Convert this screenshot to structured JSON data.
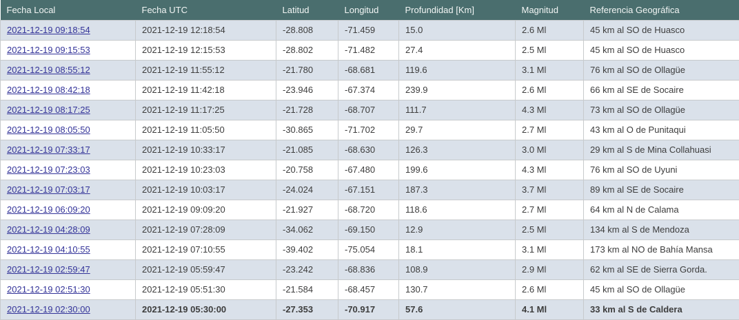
{
  "table": {
    "headers": [
      "Fecha Local",
      "Fecha UTC",
      "Latitud",
      "Longitud",
      "Profundidad [Km]",
      "Magnitud",
      "Referencia Geográfica"
    ],
    "rows": [
      {
        "fecha_local": "2021-12-19 09:18:54",
        "fecha_utc": "2021-12-19 12:18:54",
        "latitud": "-28.808",
        "longitud": "-71.459",
        "profundidad": "15.0",
        "magnitud": "2.6 Ml",
        "referencia": "45 km al SO de Huasco",
        "highlighted": false
      },
      {
        "fecha_local": "2021-12-19 09:15:53",
        "fecha_utc": "2021-12-19 12:15:53",
        "latitud": "-28.802",
        "longitud": "-71.482",
        "profundidad": "27.4",
        "magnitud": "2.5 Ml",
        "referencia": "45 km al SO de Huasco",
        "highlighted": false
      },
      {
        "fecha_local": "2021-12-19 08:55:12",
        "fecha_utc": "2021-12-19 11:55:12",
        "latitud": "-21.780",
        "longitud": "-68.681",
        "profundidad": "119.6",
        "magnitud": "3.1 Ml",
        "referencia": "76 km al SO de Ollagüe",
        "highlighted": false
      },
      {
        "fecha_local": "2021-12-19 08:42:18",
        "fecha_utc": "2021-12-19 11:42:18",
        "latitud": "-23.946",
        "longitud": "-67.374",
        "profundidad": "239.9",
        "magnitud": "2.6 Ml",
        "referencia": "66 km al SE de Socaire",
        "highlighted": false
      },
      {
        "fecha_local": "2021-12-19 08:17:25",
        "fecha_utc": "2021-12-19 11:17:25",
        "latitud": "-21.728",
        "longitud": "-68.707",
        "profundidad": "111.7",
        "magnitud": "4.3 Ml",
        "referencia": "73 km al SO de Ollagüe",
        "highlighted": false
      },
      {
        "fecha_local": "2021-12-19 08:05:50",
        "fecha_utc": "2021-12-19 11:05:50",
        "latitud": "-30.865",
        "longitud": "-71.702",
        "profundidad": "29.7",
        "magnitud": "2.7 Ml",
        "referencia": "43 km al O de Punitaqui",
        "highlighted": false
      },
      {
        "fecha_local": "2021-12-19 07:33:17",
        "fecha_utc": "2021-12-19 10:33:17",
        "latitud": "-21.085",
        "longitud": "-68.630",
        "profundidad": "126.3",
        "magnitud": "3.0 Ml",
        "referencia": "29 km al S de Mina Collahuasi",
        "highlighted": false
      },
      {
        "fecha_local": "2021-12-19 07:23:03",
        "fecha_utc": "2021-12-19 10:23:03",
        "latitud": "-20.758",
        "longitud": "-67.480",
        "profundidad": "199.6",
        "magnitud": "4.3 Ml",
        "referencia": "76 km al SO de Uyuni",
        "highlighted": false
      },
      {
        "fecha_local": "2021-12-19 07:03:17",
        "fecha_utc": "2021-12-19 10:03:17",
        "latitud": "-24.024",
        "longitud": "-67.151",
        "profundidad": "187.3",
        "magnitud": "3.7 Ml",
        "referencia": "89 km al SE de Socaire",
        "highlighted": false
      },
      {
        "fecha_local": "2021-12-19 06:09:20",
        "fecha_utc": "2021-12-19 09:09:20",
        "latitud": "-21.927",
        "longitud": "-68.720",
        "profundidad": "118.6",
        "magnitud": "2.7 Ml",
        "referencia": "64 km al N de Calama",
        "highlighted": false
      },
      {
        "fecha_local": "2021-12-19 04:28:09",
        "fecha_utc": "2021-12-19 07:28:09",
        "latitud": "-34.062",
        "longitud": "-69.150",
        "profundidad": "12.9",
        "magnitud": "2.5 Ml",
        "referencia": "134 km al S de Mendoza",
        "highlighted": false
      },
      {
        "fecha_local": "2021-12-19 04:10:55",
        "fecha_utc": "2021-12-19 07:10:55",
        "latitud": "-39.402",
        "longitud": "-75.054",
        "profundidad": "18.1",
        "magnitud": "3.1 Ml",
        "referencia": "173 km al NO de Bahía Mansa",
        "highlighted": false
      },
      {
        "fecha_local": "2021-12-19 02:59:47",
        "fecha_utc": "2021-12-19 05:59:47",
        "latitud": "-23.242",
        "longitud": "-68.836",
        "profundidad": "108.9",
        "magnitud": "2.9 Ml",
        "referencia": "62 km al SE de Sierra Gorda.",
        "highlighted": false
      },
      {
        "fecha_local": "2021-12-19 02:51:30",
        "fecha_utc": "2021-12-19 05:51:30",
        "latitud": "-21.584",
        "longitud": "-68.457",
        "profundidad": "130.7",
        "magnitud": "2.6 Ml",
        "referencia": "45 km al SO de Ollagüe",
        "highlighted": false
      },
      {
        "fecha_local": "2021-12-19 02:30:00",
        "fecha_utc": "2021-12-19 05:30:00",
        "latitud": "-27.353",
        "longitud": "-70.917",
        "profundidad": "57.6",
        "magnitud": "4.1 Ml",
        "referencia": "33 km al S de Caldera",
        "highlighted": true
      }
    ]
  },
  "colors": {
    "header_bg": "#4a6e6e",
    "header_text": "#f2f5f4",
    "row_stripe": "#dae1ea",
    "row_white": "#ffffff",
    "link": "#333399",
    "cell_text": "#3d3d3d",
    "border": "#c7cacc"
  }
}
